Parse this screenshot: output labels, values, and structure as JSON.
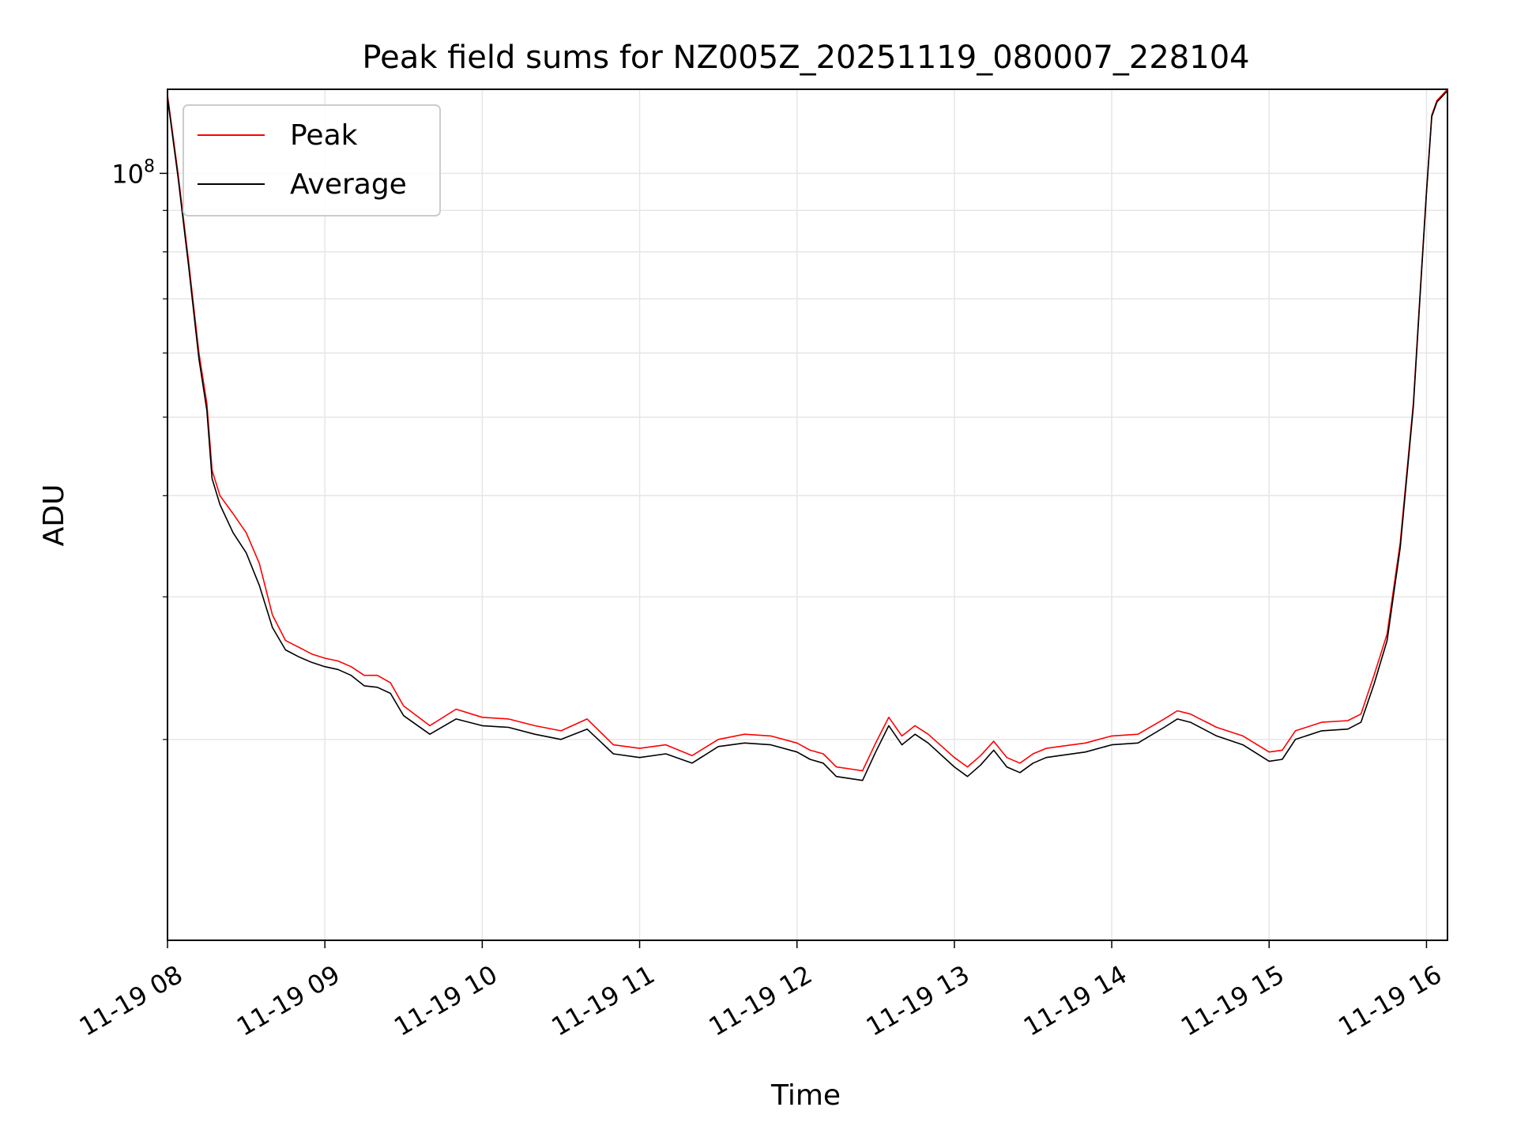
{
  "chart_data": {
    "type": "line",
    "title": "Peak field sums for NZ005Z_20251119_080007_228104",
    "xlabel": "Time",
    "ylabel": "ADU",
    "y_scale": "log",
    "ylim": [
      11300000,
      127000000
    ],
    "y_tick_labels": [
      {
        "value": 100000000,
        "base": "10",
        "exp": "8"
      }
    ],
    "y_minor_ticks": [
      20000000,
      30000000,
      40000000,
      50000000,
      60000000,
      70000000,
      80000000,
      90000000
    ],
    "xlim": [
      "2025-11-19T08:00:00",
      "2025-11-19T16:08:00"
    ],
    "x_ticks": [
      {
        "value": "2025-11-19T08:00:00",
        "label": "11-19 08"
      },
      {
        "value": "2025-11-19T09:00:00",
        "label": "11-19 09"
      },
      {
        "value": "2025-11-19T10:00:00",
        "label": "11-19 10"
      },
      {
        "value": "2025-11-19T11:00:00",
        "label": "11-19 11"
      },
      {
        "value": "2025-11-19T12:00:00",
        "label": "11-19 12"
      },
      {
        "value": "2025-11-19T13:00:00",
        "label": "11-19 13"
      },
      {
        "value": "2025-11-19T14:00:00",
        "label": "11-19 14"
      },
      {
        "value": "2025-11-19T15:00:00",
        "label": "11-19 15"
      },
      {
        "value": "2025-11-19T16:00:00",
        "label": "11-19 16"
      }
    ],
    "grid": true,
    "legend_position": "upper-left",
    "series": [
      {
        "name": "Peak",
        "color": "#ff0000",
        "x": [
          "08:00",
          "08:04",
          "08:08",
          "08:12",
          "08:15",
          "08:17",
          "08:20",
          "08:25",
          "08:30",
          "08:35",
          "08:40",
          "08:45",
          "08:50",
          "08:55",
          "09:00",
          "09:05",
          "09:10",
          "09:15",
          "09:20",
          "09:25",
          "09:30",
          "09:40",
          "09:50",
          "10:00",
          "10:10",
          "10:20",
          "10:30",
          "10:40",
          "10:50",
          "11:00",
          "11:10",
          "11:20",
          "11:30",
          "11:40",
          "11:50",
          "12:00",
          "12:05",
          "12:10",
          "12:15",
          "12:20",
          "12:25",
          "12:30",
          "12:35",
          "12:40",
          "12:45",
          "12:50",
          "13:00",
          "13:05",
          "13:10",
          "13:15",
          "13:20",
          "13:25",
          "13:30",
          "13:35",
          "13:40",
          "13:50",
          "14:00",
          "14:10",
          "14:20",
          "14:25",
          "14:30",
          "14:40",
          "14:50",
          "15:00",
          "15:05",
          "15:10",
          "15:20",
          "15:30",
          "15:35",
          "15:40",
          "15:45",
          "15:50",
          "15:55",
          "15:58",
          "16:00",
          "16:02",
          "16:04",
          "16:08"
        ],
        "y": [
          125000000,
          100000000,
          78000000,
          60000000,
          52000000,
          43000000,
          40000000,
          38000000,
          36000000,
          33000000,
          28500000,
          26500000,
          26000000,
          25500000,
          25200000,
          25000000,
          24600000,
          24000000,
          24000000,
          23500000,
          22000000,
          20800000,
          21800000,
          21300000,
          21200000,
          20800000,
          20500000,
          21200000,
          19700000,
          19500000,
          19700000,
          19100000,
          20000000,
          20300000,
          20200000,
          19800000,
          19400000,
          19200000,
          18500000,
          18400000,
          18300000,
          19800000,
          21300000,
          20200000,
          20800000,
          20300000,
          19000000,
          18500000,
          19100000,
          19900000,
          19000000,
          18700000,
          19200000,
          19500000,
          19600000,
          19800000,
          20200000,
          20300000,
          21200000,
          21700000,
          21500000,
          20700000,
          20200000,
          19300000,
          19400000,
          20500000,
          21000000,
          21100000,
          21500000,
          24000000,
          27000000,
          35000000,
          52000000,
          75000000,
          95000000,
          118000000,
          123000000,
          127000000
        ]
      },
      {
        "name": "Average",
        "color": "#000000",
        "x": [
          "08:00",
          "08:04",
          "08:08",
          "08:12",
          "08:15",
          "08:17",
          "08:20",
          "08:25",
          "08:30",
          "08:35",
          "08:40",
          "08:45",
          "08:50",
          "08:55",
          "09:00",
          "09:05",
          "09:10",
          "09:15",
          "09:20",
          "09:25",
          "09:30",
          "09:40",
          "09:50",
          "10:00",
          "10:10",
          "10:20",
          "10:30",
          "10:40",
          "10:50",
          "11:00",
          "11:10",
          "11:20",
          "11:30",
          "11:40",
          "11:50",
          "12:00",
          "12:05",
          "12:10",
          "12:15",
          "12:20",
          "12:25",
          "12:30",
          "12:35",
          "12:40",
          "12:45",
          "12:50",
          "13:00",
          "13:05",
          "13:10",
          "13:15",
          "13:20",
          "13:25",
          "13:30",
          "13:35",
          "13:40",
          "13:50",
          "14:00",
          "14:10",
          "14:20",
          "14:25",
          "14:30",
          "14:40",
          "14:50",
          "15:00",
          "15:05",
          "15:10",
          "15:20",
          "15:30",
          "15:35",
          "15:40",
          "15:45",
          "15:50",
          "15:55",
          "15:58",
          "16:00",
          "16:02",
          "16:04",
          "16:08"
        ],
        "y": [
          124000000,
          99000000,
          77000000,
          59000000,
          51000000,
          42000000,
          39000000,
          36000000,
          34000000,
          31000000,
          27500000,
          25800000,
          25300000,
          24900000,
          24600000,
          24400000,
          24000000,
          23300000,
          23200000,
          22800000,
          21400000,
          20300000,
          21200000,
          20800000,
          20700000,
          20300000,
          20000000,
          20600000,
          19200000,
          19000000,
          19200000,
          18700000,
          19600000,
          19800000,
          19700000,
          19300000,
          18900000,
          18700000,
          18000000,
          17900000,
          17800000,
          19300000,
          20800000,
          19700000,
          20300000,
          19800000,
          18500000,
          18000000,
          18600000,
          19400000,
          18500000,
          18200000,
          18700000,
          19000000,
          19100000,
          19300000,
          19700000,
          19800000,
          20700000,
          21200000,
          21000000,
          20200000,
          19700000,
          18800000,
          18900000,
          20000000,
          20500000,
          20600000,
          21000000,
          23400000,
          26500000,
          34500000,
          51500000,
          74500000,
          94500000,
          117500000,
          122500000,
          126500000
        ]
      }
    ]
  }
}
